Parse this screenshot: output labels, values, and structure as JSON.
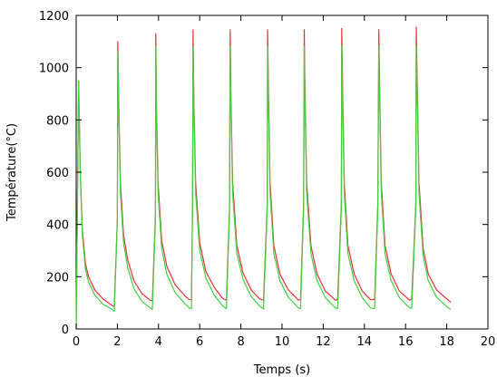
{
  "chart_data": {
    "type": "line",
    "title": "",
    "xlabel": "Temps (s)",
    "ylabel": "Température(°C)",
    "xlim": [
      0,
      20
    ],
    "ylim": [
      0,
      1200
    ],
    "xticks": [
      "0",
      "2",
      "4",
      "6",
      "8",
      "10",
      "12",
      "14",
      "16",
      "18",
      "20"
    ],
    "yticks": [
      "0",
      "200",
      "400",
      "600",
      "800",
      "1000",
      "1200"
    ],
    "grid": false,
    "legend": "none",
    "series": [
      {
        "color": "#e8313b",
        "x": [
          0,
          0.12,
          0.2,
          0.3,
          0.45,
          0.6,
          0.9,
          1.3,
          1.75,
          1.85,
          2.0,
          2.02,
          2.08,
          2.15,
          2.3,
          2.5,
          2.8,
          3.2,
          3.6,
          3.7,
          3.85,
          3.87,
          3.9,
          3.98,
          4.15,
          4.4,
          4.8,
          5.3,
          5.5,
          5.6,
          5.65,
          5.68,
          5.72,
          5.8,
          6.0,
          6.3,
          6.7,
          7.1,
          7.3,
          7.45,
          7.48,
          7.52,
          7.6,
          7.8,
          8.1,
          8.5,
          8.9,
          9.1,
          9.28,
          9.3,
          9.35,
          9.42,
          9.6,
          9.9,
          10.3,
          10.8,
          10.9,
          11.05,
          11.08,
          11.12,
          11.2,
          11.4,
          11.7,
          12.1,
          12.6,
          12.7,
          12.88,
          12.9,
          12.95,
          13.02,
          13.2,
          13.5,
          13.9,
          14.3,
          14.5,
          14.65,
          14.7,
          14.75,
          14.82,
          15.0,
          15.3,
          15.7,
          16.2,
          16.3,
          16.5,
          16.52,
          16.58,
          16.65,
          16.85,
          17.1,
          17.5,
          18.0,
          18.2
        ],
        "y": [
          0,
          950,
          600,
          380,
          250,
          200,
          150,
          115,
          90,
          85,
          420,
          1100,
          820,
          560,
          360,
          265,
          185,
          135,
          110,
          108,
          440,
          1130,
          860,
          560,
          340,
          240,
          170,
          125,
          112,
          112,
          470,
          1145,
          870,
          560,
          330,
          220,
          160,
          118,
          110,
          470,
          1145,
          880,
          560,
          320,
          215,
          150,
          116,
          110,
          480,
          1145,
          880,
          560,
          320,
          210,
          150,
          110,
          112,
          480,
          1145,
          880,
          560,
          320,
          210,
          145,
          110,
          113,
          480,
          1150,
          880,
          560,
          320,
          210,
          145,
          112,
          113,
          480,
          1145,
          880,
          560,
          320,
          210,
          145,
          110,
          115,
          480,
          1155,
          880,
          560,
          310,
          210,
          150,
          115,
          102
        ]
      },
      {
        "color": "#3fd13f",
        "x": [
          0,
          0.12,
          0.2,
          0.3,
          0.45,
          0.6,
          0.9,
          1.3,
          1.75,
          1.85,
          2.0,
          2.02,
          2.08,
          2.15,
          2.3,
          2.5,
          2.8,
          3.2,
          3.6,
          3.7,
          3.85,
          3.87,
          3.9,
          3.98,
          4.15,
          4.4,
          4.8,
          5.3,
          5.5,
          5.6,
          5.65,
          5.68,
          5.72,
          5.8,
          6.0,
          6.3,
          6.7,
          7.1,
          7.3,
          7.45,
          7.48,
          7.52,
          7.6,
          7.8,
          8.1,
          8.5,
          8.9,
          9.1,
          9.28,
          9.3,
          9.35,
          9.42,
          9.6,
          9.9,
          10.3,
          10.8,
          10.9,
          11.05,
          11.08,
          11.12,
          11.2,
          11.4,
          11.7,
          12.1,
          12.6,
          12.7,
          12.88,
          12.9,
          12.95,
          13.02,
          13.2,
          13.5,
          13.9,
          14.3,
          14.5,
          14.65,
          14.7,
          14.75,
          14.82,
          15.0,
          15.3,
          15.7,
          16.2,
          16.3,
          16.5,
          16.52,
          16.58,
          16.65,
          16.85,
          17.1,
          17.5,
          18.0,
          18.2
        ],
        "y": [
          0,
          950,
          590,
          360,
          230,
          180,
          130,
          95,
          75,
          68,
          410,
          1060,
          800,
          520,
          330,
          235,
          155,
          105,
          80,
          75,
          420,
          1080,
          830,
          520,
          310,
          210,
          140,
          95,
          80,
          78,
          450,
          1080,
          840,
          520,
          300,
          195,
          130,
          90,
          77,
          450,
          1080,
          840,
          520,
          290,
          190,
          125,
          88,
          77,
          460,
          1080,
          840,
          520,
          290,
          185,
          122,
          80,
          78,
          460,
          1080,
          840,
          520,
          290,
          185,
          120,
          80,
          78,
          460,
          1085,
          840,
          520,
          290,
          185,
          120,
          80,
          78,
          460,
          1085,
          840,
          520,
          290,
          185,
          120,
          80,
          80,
          460,
          1085,
          840,
          520,
          280,
          185,
          122,
          85,
          75
        ]
      }
    ]
  }
}
